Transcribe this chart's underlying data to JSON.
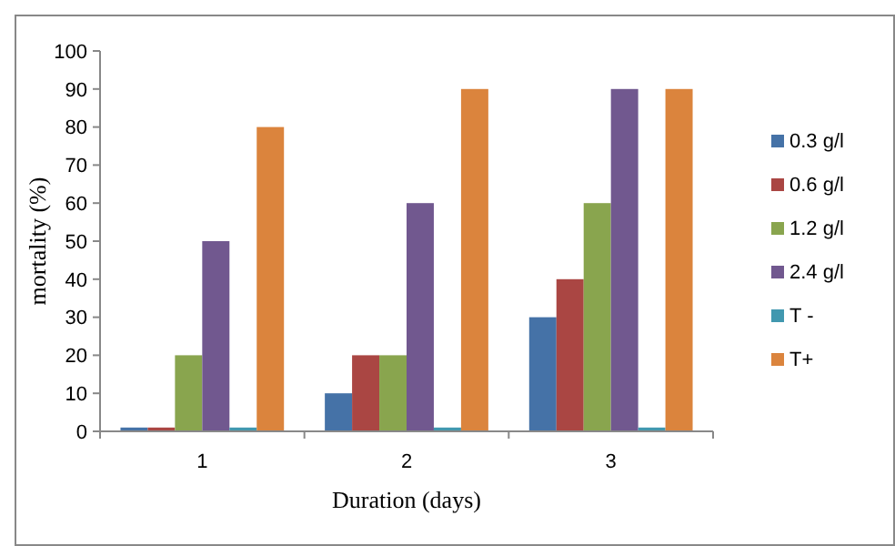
{
  "chart_data": {
    "type": "bar",
    "xlabel": "Duration (days)",
    "ylabel": "mortality (%)",
    "categories": [
      "1",
      "2",
      "3"
    ],
    "series": [
      {
        "name": "0.3 g/l",
        "color": "#4572a7",
        "values": [
          1,
          10,
          30
        ]
      },
      {
        "name": "0.6 g/l",
        "color": "#aa4643",
        "values": [
          1,
          20,
          40
        ]
      },
      {
        "name": "1.2 g/l",
        "color": "#89a54e",
        "values": [
          20,
          20,
          60
        ]
      },
      {
        "name": "2.4 g/l",
        "color": "#71588f",
        "values": [
          50,
          60,
          90
        ]
      },
      {
        "name": "T -",
        "color": "#4198af",
        "values": [
          1,
          1,
          1
        ]
      },
      {
        "name": "T+",
        "color": "#db843d",
        "values": [
          80,
          90,
          90
        ]
      }
    ],
    "ylim": [
      0,
      100
    ],
    "yticks": [
      0,
      10,
      20,
      30,
      40,
      50,
      60,
      70,
      80,
      90,
      100
    ],
    "grid": false,
    "legend": "right"
  }
}
